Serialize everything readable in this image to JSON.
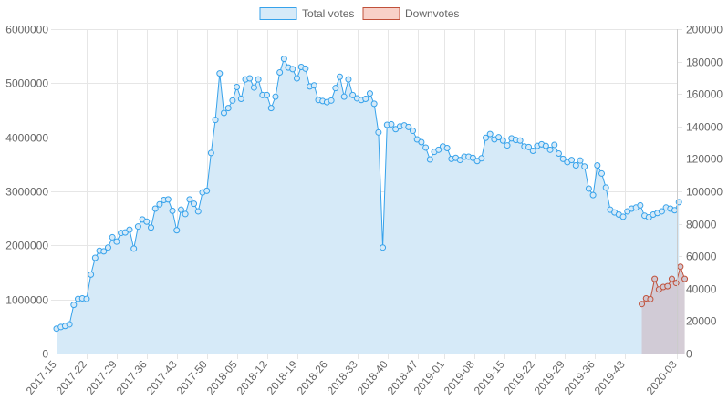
{
  "chart_data": {
    "type": "line",
    "x_tick_labels": [
      "2017-15",
      "2017-22",
      "2017-29",
      "2017-36",
      "2017-43",
      "2017-50",
      "2018-05",
      "2018-12",
      "2018-19",
      "2018-26",
      "2018-33",
      "2018-40",
      "2018-47",
      "2019-01",
      "2019-08",
      "2019-15",
      "2019-22",
      "2019-29",
      "2019-36",
      "2019-43",
      "2020-03"
    ],
    "y_left": {
      "min": 0,
      "max": 6000000,
      "ticks": [
        "0",
        "1000000",
        "2000000",
        "3000000",
        "4000000",
        "5000000",
        "6000000"
      ]
    },
    "y_right": {
      "min": 0,
      "max": 200000,
      "ticks": [
        "0",
        "20000",
        "40000",
        "60000",
        "80000",
        "100000",
        "120000",
        "140000",
        "160000",
        "180000",
        "200000"
      ]
    },
    "grid": true,
    "legend_position": "top-center",
    "series": [
      {
        "name": "Total votes",
        "axis": "left",
        "color": "#36a2eb",
        "fill": "#d6eaf8",
        "start_week": "2017-15",
        "values": [
          460000,
          490000,
          510000,
          540000,
          900000,
          1010000,
          1020000,
          1010000,
          1460000,
          1770000,
          1900000,
          1890000,
          1960000,
          2150000,
          2070000,
          2230000,
          2240000,
          2290000,
          1940000,
          2350000,
          2480000,
          2440000,
          2330000,
          2680000,
          2760000,
          2840000,
          2850000,
          2640000,
          2280000,
          2660000,
          2580000,
          2850000,
          2770000,
          2630000,
          2980000,
          3010000,
          3710000,
          4320000,
          5180000,
          4450000,
          4540000,
          4680000,
          4930000,
          4710000,
          5070000,
          5090000,
          4920000,
          5070000,
          4780000,
          4780000,
          4540000,
          4750000,
          5200000,
          5450000,
          5290000,
          5260000,
          5090000,
          5300000,
          5270000,
          4940000,
          4960000,
          4690000,
          4670000,
          4650000,
          4680000,
          4910000,
          5120000,
          4750000,
          5070000,
          4780000,
          4720000,
          4690000,
          4710000,
          4810000,
          4620000,
          4090000,
          1960000,
          4230000,
          4240000,
          4150000,
          4200000,
          4220000,
          4190000,
          4120000,
          3960000,
          3910000,
          3810000,
          3590000,
          3730000,
          3770000,
          3830000,
          3800000,
          3600000,
          3620000,
          3580000,
          3640000,
          3640000,
          3620000,
          3560000,
          3610000,
          3990000,
          4060000,
          3960000,
          4000000,
          3940000,
          3850000,
          3980000,
          3950000,
          3940000,
          3830000,
          3820000,
          3750000,
          3840000,
          3870000,
          3840000,
          3770000,
          3860000,
          3700000,
          3600000,
          3540000,
          3580000,
          3480000,
          3570000,
          3460000,
          3050000,
          2930000,
          3480000,
          3330000,
          3070000,
          2660000,
          2610000,
          2570000,
          2530000,
          2630000,
          2680000,
          2700000,
          2740000,
          2550000,
          2520000,
          2570000,
          2600000,
          2630000,
          2700000,
          2680000,
          2650000,
          2800000
        ]
      },
      {
        "name": "Downvotes",
        "axis": "right",
        "color": "#c0503a",
        "fill": "#d0c8d2",
        "start_week": "2019-47",
        "values": [
          30500,
          34000,
          33500,
          46000,
          39500,
          41000,
          41500,
          46000,
          43500,
          53500,
          46000
        ]
      }
    ]
  }
}
